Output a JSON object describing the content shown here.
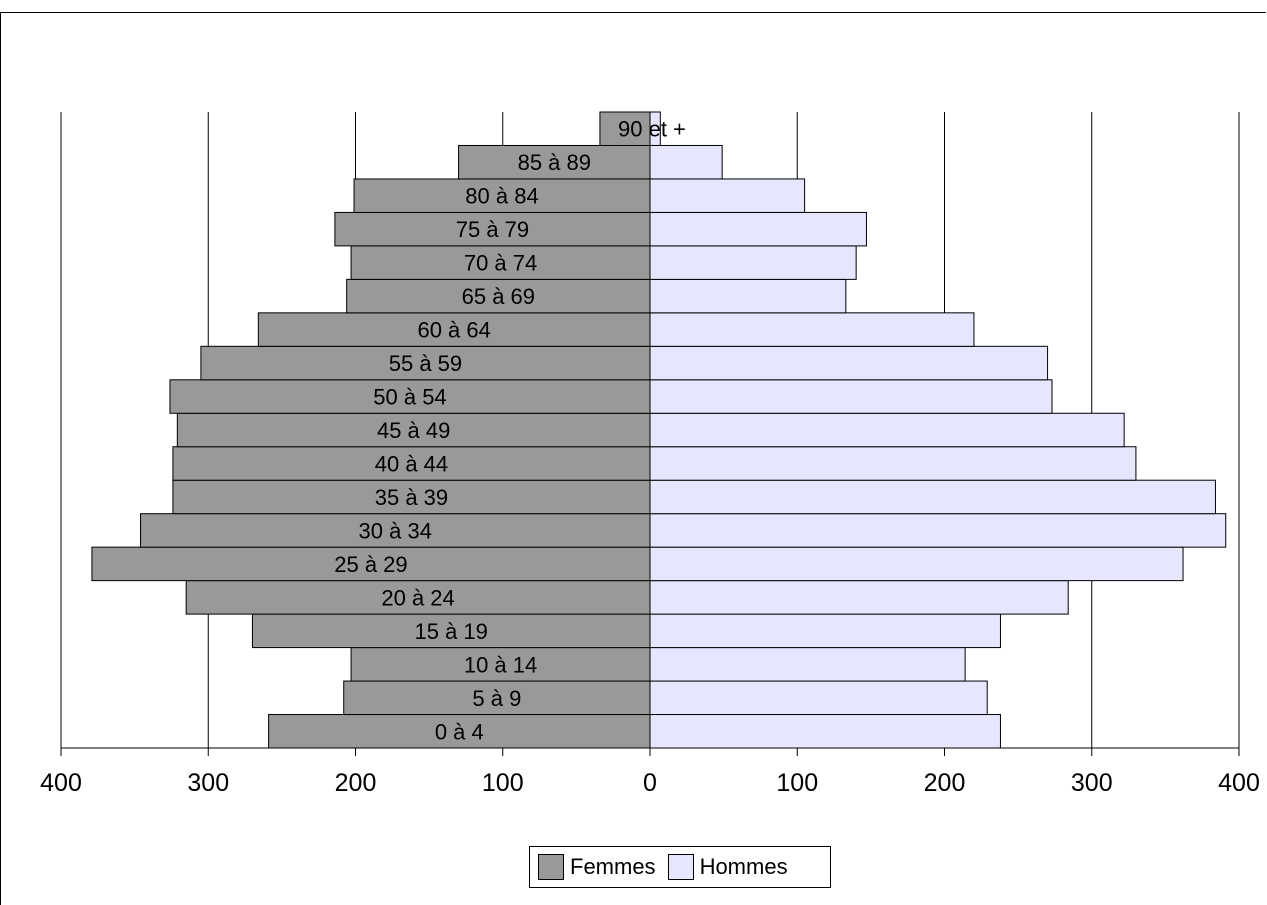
{
  "chart_data": {
    "type": "bar",
    "orientation": "horizontal-pyramid",
    "categories": [
      "0 à 4",
      "5 à 9",
      "10 à 14",
      "15 à 19",
      "20 à 24",
      "25 à 29",
      "30 à 34",
      "35 à 39",
      "40 à 44",
      "45 à 49",
      "50 à 54",
      "55 à 59",
      "60 à 64",
      "65 à 69",
      "70 à 74",
      "75 à 79",
      "80 à 84",
      "85 à 89",
      "90 et +"
    ],
    "series": [
      {
        "name": "Femmes",
        "side": "left",
        "color": "#999999",
        "values": [
          259,
          208,
          203,
          270,
          315,
          379,
          346,
          324,
          324,
          321,
          326,
          305,
          266,
          206,
          203,
          214,
          201,
          130,
          34
        ]
      },
      {
        "name": "Hommes",
        "side": "right",
        "color": "#e6e6ff",
        "values": [
          238,
          229,
          214,
          238,
          284,
          362,
          391,
          384,
          330,
          322,
          273,
          270,
          220,
          133,
          140,
          147,
          105,
          49,
          7
        ]
      }
    ],
    "xlim": [
      -400,
      400
    ],
    "x_ticks": [
      "400",
      "300",
      "200",
      "100",
      "0",
      "100",
      "200",
      "300",
      "400"
    ],
    "grid": true,
    "legend": "bottom"
  }
}
